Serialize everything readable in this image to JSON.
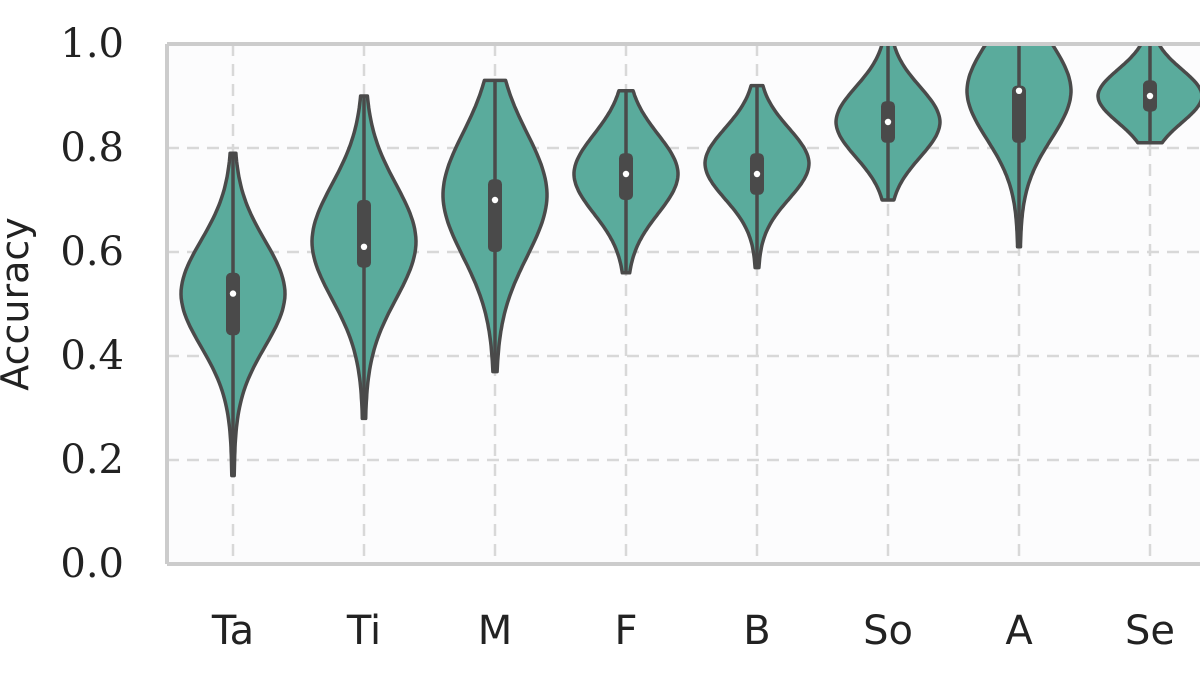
{
  "chart_data": {
    "type": "violin",
    "title": "",
    "xlabel": "",
    "ylabel": "Accuracy",
    "ylim": [
      0.0,
      1.0
    ],
    "yticks": [
      "0.0",
      "0.2",
      "0.4",
      "0.6",
      "0.8",
      "1.0"
    ],
    "grid": true,
    "legend": "none",
    "colors": {
      "violin_fill": "#5aab9c",
      "violin_edge": "#4a4a4a",
      "box": "#4a4a4a",
      "median": "#ffffff",
      "grid": "#d8d8d8",
      "axes": "#cccccc"
    },
    "categories": [
      "Ta",
      "Ti",
      "M",
      "F",
      "B",
      "So",
      "A",
      "Se"
    ],
    "series": [
      {
        "category": "Ta",
        "min": 0.17,
        "q1": 0.44,
        "median": 0.52,
        "q3": 0.56,
        "max": 0.79,
        "mode": 0.52
      },
      {
        "category": "Ti",
        "min": 0.28,
        "q1": 0.57,
        "median": 0.61,
        "q3": 0.7,
        "max": 0.9,
        "mode": 0.62
      },
      {
        "category": "M",
        "min": 0.37,
        "q1": 0.6,
        "median": 0.7,
        "q3": 0.74,
        "max": 0.93,
        "mode": 0.71
      },
      {
        "category": "F",
        "min": 0.56,
        "q1": 0.7,
        "median": 0.75,
        "q3": 0.79,
        "max": 0.91,
        "mode": 0.75
      },
      {
        "category": "B",
        "min": 0.57,
        "q1": 0.71,
        "median": 0.75,
        "q3": 0.79,
        "max": 0.92,
        "mode": 0.77
      },
      {
        "category": "So",
        "min": 0.7,
        "q1": 0.81,
        "median": 0.85,
        "q3": 0.89,
        "max": 1.0,
        "mode": 0.85
      },
      {
        "category": "A",
        "min": 0.61,
        "q1": 0.81,
        "median": 0.91,
        "q3": 0.92,
        "max": 1.0,
        "mode": 0.91
      },
      {
        "category": "Se",
        "min": 0.81,
        "q1": 0.87,
        "median": 0.9,
        "q3": 0.93,
        "max": 1.0,
        "mode": 0.9
      }
    ]
  }
}
